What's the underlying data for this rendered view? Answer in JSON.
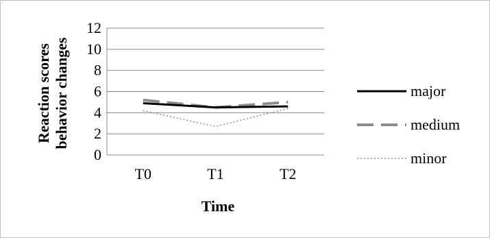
{
  "chart_data": {
    "type": "line",
    "title": "",
    "xlabel": "Time",
    "ylabel_lines": [
      "Reaction scores",
      "behavior changes"
    ],
    "categories": [
      "T0",
      "T1",
      "T2"
    ],
    "ylim": [
      0,
      12
    ],
    "yticks": [
      0,
      2,
      4,
      6,
      8,
      10,
      12
    ],
    "grid": true,
    "legend_position": "right",
    "series": [
      {
        "name": "major",
        "values": [
          4.9,
          4.5,
          4.6
        ],
        "color": "#000000",
        "style": "solid"
      },
      {
        "name": "medium",
        "values": [
          5.2,
          4.5,
          5.0
        ],
        "color": "#8c8c8c",
        "style": "dashed"
      },
      {
        "name": "minor",
        "values": [
          4.2,
          2.7,
          4.4
        ],
        "color": "#8c8c8c",
        "style": "dotted"
      }
    ]
  }
}
